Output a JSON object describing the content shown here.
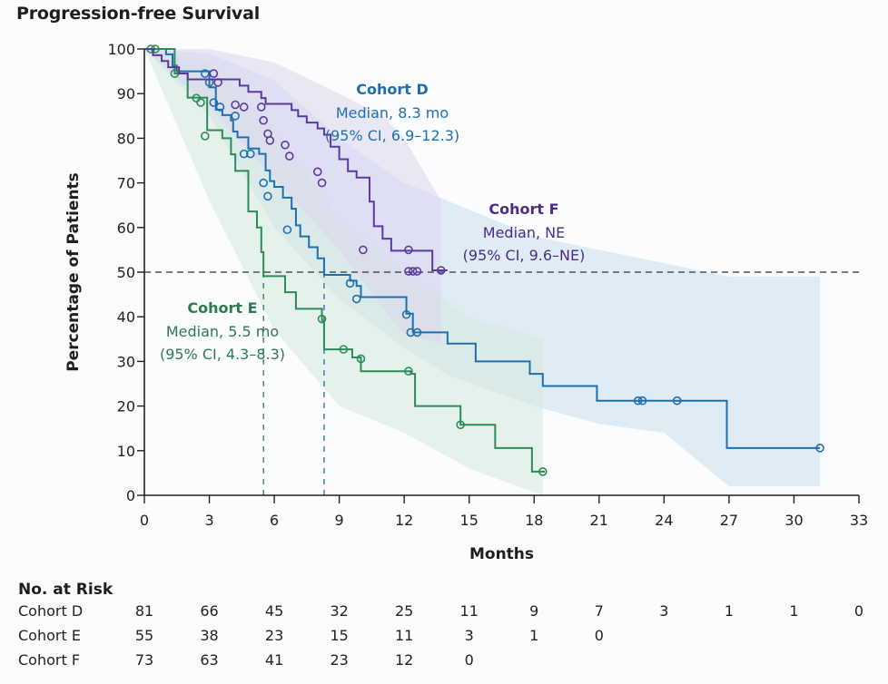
{
  "chart_data": {
    "type": "line",
    "subtype": "kaplan-meier",
    "title": "Progression-free Survival",
    "xlabel": "Months",
    "ylabel": "Percentage of Patients",
    "xlim": [
      0,
      33
    ],
    "ylim": [
      0,
      100
    ],
    "xticks": [
      0,
      3,
      6,
      9,
      12,
      15,
      18,
      21,
      24,
      27,
      30,
      33
    ],
    "yticks": [
      0,
      10,
      20,
      30,
      40,
      50,
      60,
      70,
      80,
      90,
      100
    ],
    "reference_line": {
      "y": 50,
      "style": "dashed"
    },
    "series": [
      {
        "name": "Cohort D",
        "color": "#1f6fb0",
        "ci_color": "#c9dcef",
        "median_months": 8.3,
        "steps": [
          [
            0,
            100
          ],
          [
            1.0,
            98.8
          ],
          [
            1.3,
            96.3
          ],
          [
            1.5,
            95
          ],
          [
            3.0,
            95
          ],
          [
            3.0,
            91.4
          ],
          [
            3.3,
            86.4
          ],
          [
            3.6,
            85.2
          ],
          [
            4.0,
            84.0
          ],
          [
            4.1,
            81.5
          ],
          [
            4.3,
            80.2
          ],
          [
            4.8,
            77.7
          ],
          [
            5.3,
            76.5
          ],
          [
            5.6,
            72.8
          ],
          [
            5.8,
            70.4
          ],
          [
            6.0,
            69.1
          ],
          [
            6.4,
            66.7
          ],
          [
            6.8,
            64.2
          ],
          [
            7.0,
            60.5
          ],
          [
            7.2,
            58.0
          ],
          [
            7.6,
            55.6
          ],
          [
            8.0,
            53.1
          ],
          [
            8.3,
            49.4
          ],
          [
            9.5,
            48.1
          ],
          [
            9.8,
            46.9
          ],
          [
            10.0,
            44.4
          ],
          [
            11.7,
            44.4
          ],
          [
            12.1,
            40.7
          ],
          [
            12.4,
            37.0
          ],
          [
            12.4,
            36.5
          ],
          [
            14.0,
            34.0
          ],
          [
            15.3,
            30.0
          ],
          [
            17.8,
            27.2
          ],
          [
            18.4,
            24.5
          ],
          [
            20.9,
            21.2
          ],
          [
            26.9,
            21.2
          ],
          [
            26.9,
            10.6
          ],
          [
            31.2,
            10.6
          ]
        ],
        "censor_marks": [
          [
            2.8,
            94.5
          ],
          [
            3.0,
            92.5
          ],
          [
            3.2,
            88
          ],
          [
            3.5,
            87
          ],
          [
            4.2,
            85
          ],
          [
            4.6,
            76.5
          ],
          [
            4.9,
            76.5
          ],
          [
            5.5,
            70
          ],
          [
            5.7,
            67
          ],
          [
            6.6,
            59.5
          ],
          [
            9.5,
            47.5
          ],
          [
            9.8,
            44
          ],
          [
            12.1,
            40.5
          ],
          [
            12.3,
            36.5
          ],
          [
            12.6,
            36.5
          ],
          [
            22.8,
            21.2
          ],
          [
            23.0,
            21.2
          ],
          [
            24.6,
            21.2
          ],
          [
            31.2,
            10.6
          ]
        ],
        "ci_upper": [
          [
            0,
            100
          ],
          [
            3,
            99
          ],
          [
            6,
            93
          ],
          [
            9,
            80
          ],
          [
            12,
            70
          ],
          [
            14,
            66
          ],
          [
            18,
            58
          ],
          [
            21,
            55
          ],
          [
            24,
            52
          ],
          [
            27,
            49
          ],
          [
            31.2,
            49
          ]
        ],
        "ci_lower": [
          [
            0,
            100
          ],
          [
            3,
            85
          ],
          [
            6,
            60
          ],
          [
            9,
            44
          ],
          [
            12,
            33
          ],
          [
            14,
            27
          ],
          [
            18,
            20
          ],
          [
            21,
            16
          ],
          [
            24,
            14
          ],
          [
            27,
            2
          ],
          [
            31.2,
            2
          ]
        ]
      },
      {
        "name": "Cohort E",
        "color": "#2e8b57",
        "ci_color": "#d3e9dc",
        "median_months": 5.5,
        "steps": [
          [
            0,
            100
          ],
          [
            1.2,
            100
          ],
          [
            1.4,
            94.5
          ],
          [
            2.0,
            89.1
          ],
          [
            2.6,
            89.1
          ],
          [
            2.9,
            81.8
          ],
          [
            3.6,
            80.0
          ],
          [
            4.0,
            76.4
          ],
          [
            4.2,
            72.7
          ],
          [
            4.8,
            63.6
          ],
          [
            5.2,
            60.0
          ],
          [
            5.4,
            54.5
          ],
          [
            5.5,
            49.1
          ],
          [
            6.5,
            45.5
          ],
          [
            7.0,
            41.8
          ],
          [
            8.2,
            39.1
          ],
          [
            8.3,
            32.7
          ],
          [
            9.0,
            32.7
          ],
          [
            9.6,
            30.9
          ],
          [
            10.0,
            29.1
          ],
          [
            10.0,
            27.8
          ],
          [
            12.2,
            27.8
          ],
          [
            12.3,
            27.2
          ],
          [
            12.5,
            20
          ],
          [
            14.6,
            20
          ],
          [
            14.6,
            15.8
          ],
          [
            16.2,
            15.8
          ],
          [
            16.2,
            10.6
          ],
          [
            17.9,
            10.6
          ],
          [
            17.9,
            5.3
          ],
          [
            18.5,
            5.3
          ]
        ],
        "censor_marks": [
          [
            0.3,
            100
          ],
          [
            0.5,
            100
          ],
          [
            1.4,
            94.5
          ],
          [
            2.4,
            89
          ],
          [
            2.6,
            88
          ],
          [
            2.8,
            80.5
          ],
          [
            8.2,
            39.5
          ],
          [
            9.2,
            32.7
          ],
          [
            10.0,
            30.6
          ],
          [
            12.2,
            27.8
          ],
          [
            14.6,
            15.8
          ],
          [
            18.4,
            5.3
          ]
        ],
        "ci_upper": [
          [
            0,
            100
          ],
          [
            3,
            97
          ],
          [
            6,
            82
          ],
          [
            9,
            62
          ],
          [
            12,
            50
          ],
          [
            15,
            40
          ],
          [
            18.4,
            35
          ]
        ],
        "ci_lower": [
          [
            0,
            100
          ],
          [
            3,
            66
          ],
          [
            6,
            37
          ],
          [
            9,
            20
          ],
          [
            12,
            14
          ],
          [
            15,
            6
          ],
          [
            18.4,
            0
          ]
        ]
      },
      {
        "name": "Cohort F",
        "color": "#5b3a9e",
        "ci_color": "#dcd5ee",
        "median_months": null,
        "median_label": "NE",
        "steps": [
          [
            0,
            100
          ],
          [
            0.4,
            98.6
          ],
          [
            0.8,
            97.3
          ],
          [
            1.1,
            95.9
          ],
          [
            1.6,
            94.5
          ],
          [
            2.0,
            93.2
          ],
          [
            4.2,
            93.2
          ],
          [
            4.4,
            91.8
          ],
          [
            4.8,
            90.4
          ],
          [
            5.4,
            89.0
          ],
          [
            5.6,
            87.7
          ],
          [
            6.0,
            87.7
          ],
          [
            6.8,
            86.3
          ],
          [
            7.1,
            84.9
          ],
          [
            7.5,
            83.5
          ],
          [
            8.0,
            82.2
          ],
          [
            8.3,
            80.8
          ],
          [
            8.6,
            78.1
          ],
          [
            9.0,
            75.3
          ],
          [
            9.4,
            72.6
          ],
          [
            9.8,
            71.2
          ],
          [
            10.4,
            65.8
          ],
          [
            10.6,
            60.3
          ],
          [
            11.0,
            57.5
          ],
          [
            11.4,
            54.8
          ],
          [
            13.2,
            54.8
          ],
          [
            13.3,
            50.4
          ],
          [
            14.0,
            50.4
          ]
        ],
        "censor_marks": [
          [
            3.2,
            94.5
          ],
          [
            3.4,
            92.5
          ],
          [
            4.2,
            87.5
          ],
          [
            4.6,
            87
          ],
          [
            5.4,
            87
          ],
          [
            5.5,
            84
          ],
          [
            5.7,
            81
          ],
          [
            5.8,
            79.5
          ],
          [
            6.5,
            78.5
          ],
          [
            6.7,
            76
          ],
          [
            8.0,
            72.5
          ],
          [
            8.2,
            70
          ],
          [
            10.1,
            55
          ],
          [
            12.2,
            55
          ],
          [
            12.2,
            50.2
          ],
          [
            12.4,
            50.2
          ],
          [
            12.6,
            50.2
          ],
          [
            13.7,
            50.4
          ]
        ],
        "ci_upper": [
          [
            0,
            100
          ],
          [
            3,
            100
          ],
          [
            6,
            97
          ],
          [
            9,
            90
          ],
          [
            11,
            85
          ],
          [
            12,
            80
          ],
          [
            13.7,
            66
          ]
        ],
        "ci_lower": [
          [
            0,
            100
          ],
          [
            3,
            87
          ],
          [
            6,
            71
          ],
          [
            9,
            55
          ],
          [
            11,
            42
          ],
          [
            12,
            36
          ],
          [
            13.7,
            34
          ]
        ]
      }
    ],
    "annotations": [
      {
        "cohort": "Cohort D",
        "title": "Cohort D",
        "median": "Median, 8.3 mo",
        "ci": "(95% CI, 6.9–12.3)",
        "color": "#1f6fb0",
        "median_month": 8.3
      },
      {
        "cohort": "Cohort E",
        "title": "Cohort E",
        "median": "Median, 5.5 mo",
        "ci": "(95% CI, 4.3–8.3)",
        "color": "#2e7a4f",
        "median_month": 5.5
      },
      {
        "cohort": "Cohort F",
        "title": "Cohort F",
        "median": "Median, NE",
        "ci": "(95% CI, 9.6–NE)",
        "color": "#4a2d86"
      }
    ]
  },
  "risk_table": {
    "title": "No. at Risk",
    "timepoints": [
      0,
      3,
      6,
      9,
      12,
      15,
      18,
      21,
      24,
      27,
      30,
      33
    ],
    "rows": [
      {
        "label": "Cohort D",
        "values": [
          "81",
          "66",
          "45",
          "32",
          "25",
          "11",
          "9",
          "7",
          "3",
          "1",
          "1",
          "0"
        ]
      },
      {
        "label": "Cohort E",
        "values": [
          "55",
          "38",
          "23",
          "15",
          "11",
          "3",
          "1",
          "0"
        ]
      },
      {
        "label": "Cohort F",
        "values": [
          "73",
          "63",
          "41",
          "23",
          "12",
          "0"
        ]
      }
    ]
  }
}
